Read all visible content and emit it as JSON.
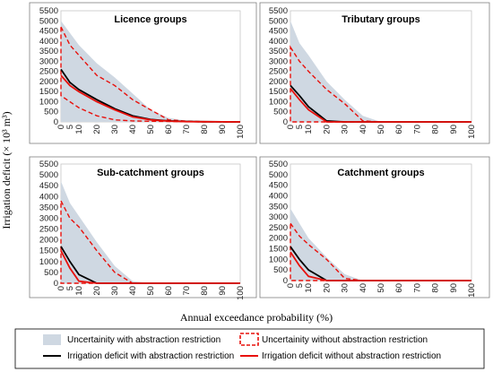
{
  "ylabel": "Irrigation deficit (× 10³ m³)",
  "xlabel": "Annual exceedance probability (%)",
  "colors": {
    "band": "#cfd8e2",
    "with_line": "#000000",
    "without": "#e8100b"
  },
  "legend": {
    "band_with": "Uncertainity with abstraction restriction",
    "band_without": "Uncertainity without abstraction restriction",
    "line_with": "Irrigation deficit  with abstraction restriction",
    "line_without": "Irrigation deficit  without abstraction restriction"
  },
  "chart_data": [
    {
      "type": "area",
      "title": "Licence groups",
      "x": [
        0,
        5,
        10,
        20,
        30,
        40,
        50,
        60,
        70,
        80,
        90,
        100
      ],
      "yticks": [
        0,
        500,
        1000,
        1500,
        2000,
        2500,
        3000,
        3500,
        4000,
        4500,
        5000,
        5500
      ],
      "ylim": [
        0,
        5500
      ],
      "band_with_upper": [
        5000,
        4400,
        3800,
        2900,
        2200,
        1400,
        600,
        200,
        60,
        20,
        5,
        0
      ],
      "band_with_lower": [
        0,
        0,
        0,
        0,
        0,
        0,
        0,
        0,
        0,
        0,
        0,
        0
      ],
      "band_without_upper": [
        4700,
        3800,
        3300,
        2300,
        1800,
        1100,
        600,
        100,
        40,
        10,
        5,
        0
      ],
      "band_without_lower": [
        1300,
        1000,
        700,
        300,
        100,
        50,
        30,
        20,
        10,
        5,
        0,
        0
      ],
      "line_with": [
        2600,
        1950,
        1600,
        1100,
        650,
        300,
        120,
        50,
        20,
        10,
        5,
        0
      ],
      "line_without": [
        2300,
        1800,
        1500,
        1000,
        600,
        250,
        100,
        40,
        15,
        10,
        5,
        0
      ]
    },
    {
      "type": "area",
      "title": "Tributary groups",
      "x": [
        0,
        5,
        10,
        20,
        30,
        40,
        50,
        60,
        70,
        80,
        90,
        100
      ],
      "yticks": [
        0,
        500,
        1000,
        1500,
        2000,
        2500,
        3000,
        3500,
        4000,
        4500,
        5000,
        5500
      ],
      "ylim": [
        0,
        5500
      ],
      "band_with_upper": [
        5000,
        3900,
        3300,
        2000,
        1100,
        300,
        0,
        0,
        0,
        0,
        0,
        0
      ],
      "band_with_lower": [
        0,
        0,
        0,
        0,
        0,
        0,
        0,
        0,
        0,
        0,
        0,
        0
      ],
      "band_without_upper": [
        3700,
        3000,
        2500,
        1600,
        900,
        50,
        0,
        0,
        0,
        0,
        0,
        0
      ],
      "band_without_lower": [
        0,
        0,
        0,
        0,
        0,
        0,
        0,
        0,
        0,
        0,
        0,
        0
      ],
      "line_with": [
        1800,
        1300,
        750,
        50,
        0,
        0,
        0,
        0,
        0,
        0,
        0,
        0
      ],
      "line_without": [
        1650,
        1100,
        600,
        0,
        0,
        0,
        0,
        0,
        0,
        0,
        0,
        0
      ]
    },
    {
      "type": "area",
      "title": "Sub-catchment groups",
      "x": [
        0,
        5,
        10,
        20,
        30,
        40,
        50,
        60,
        70,
        80,
        90,
        100
      ],
      "yticks": [
        0,
        500,
        1000,
        1500,
        2000,
        2500,
        3000,
        3500,
        4000,
        4500,
        5000,
        5500
      ],
      "ylim": [
        0,
        5500
      ],
      "band_with_upper": [
        4700,
        3700,
        3100,
        1900,
        800,
        100,
        0,
        0,
        0,
        0,
        0,
        0
      ],
      "band_with_lower": [
        0,
        0,
        0,
        0,
        0,
        0,
        0,
        0,
        0,
        0,
        0,
        0
      ],
      "band_without_upper": [
        3800,
        3000,
        2600,
        1500,
        500,
        0,
        0,
        0,
        0,
        0,
        0,
        0
      ],
      "band_without_lower": [
        0,
        0,
        0,
        0,
        0,
        0,
        0,
        0,
        0,
        0,
        0,
        0
      ],
      "line_with": [
        1700,
        1000,
        400,
        0,
        0,
        0,
        0,
        0,
        0,
        0,
        0,
        0
      ],
      "line_without": [
        1500,
        700,
        100,
        0,
        0,
        0,
        0,
        0,
        0,
        0,
        0,
        0
      ]
    },
    {
      "type": "area",
      "title": "Catchment groups",
      "x": [
        0,
        5,
        10,
        20,
        30,
        40,
        50,
        60,
        70,
        80,
        90,
        100
      ],
      "yticks": [
        0,
        500,
        1000,
        1500,
        2000,
        2500,
        3000,
        3500,
        4000,
        4500,
        5000,
        5500
      ],
      "ylim": [
        0,
        5500
      ],
      "band_with_upper": [
        3400,
        2700,
        2000,
        1100,
        300,
        0,
        0,
        0,
        0,
        0,
        0,
        0
      ],
      "band_with_lower": [
        0,
        0,
        0,
        0,
        0,
        0,
        0,
        0,
        0,
        0,
        0,
        0
      ],
      "band_without_upper": [
        2700,
        2100,
        1700,
        1000,
        100,
        0,
        0,
        0,
        0,
        0,
        0,
        0
      ],
      "band_without_lower": [
        0,
        0,
        0,
        0,
        0,
        0,
        0,
        0,
        0,
        0,
        0,
        0
      ],
      "line_with": [
        1600,
        1000,
        500,
        0,
        0,
        0,
        0,
        0,
        0,
        0,
        0,
        0
      ],
      "line_without": [
        1350,
        700,
        200,
        0,
        0,
        0,
        0,
        0,
        0,
        0,
        0,
        0
      ]
    }
  ]
}
